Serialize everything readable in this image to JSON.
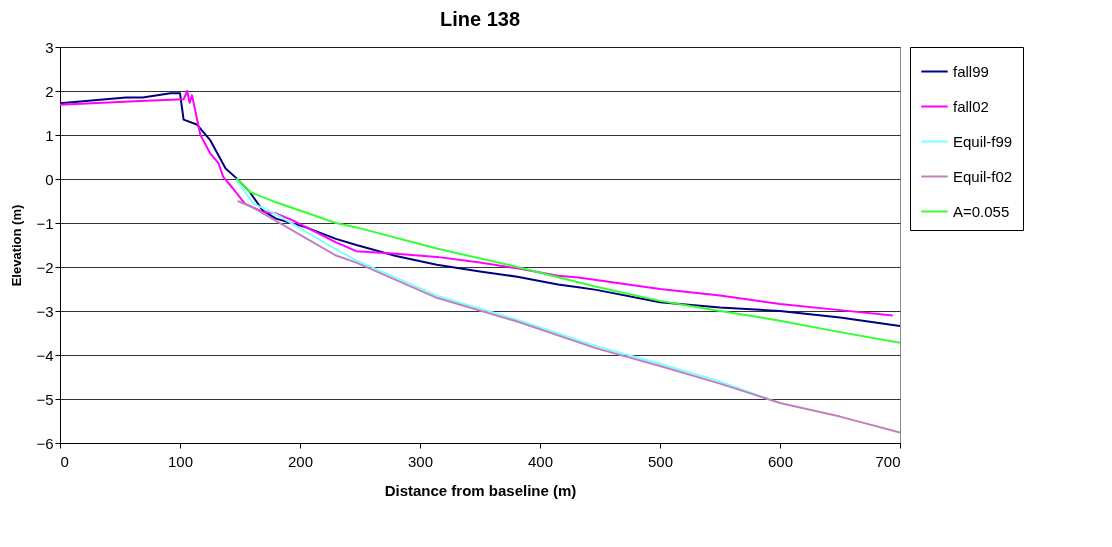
{
  "chart_data": {
    "type": "line",
    "title": "Line 138",
    "xlabel": "Distance from baseline (m)",
    "ylabel": "Elevation (m)",
    "xlim": [
      0,
      700
    ],
    "xticks": [
      0,
      100,
      200,
      300,
      400,
      500,
      600,
      700
    ],
    "ylim": [
      -6,
      3
    ],
    "yticks": [
      -6,
      -5,
      -4,
      -3,
      -2,
      -1,
      0,
      1,
      2,
      3
    ],
    "grid": "y",
    "legend": "right",
    "marker": "none",
    "line_style": "solid",
    "series": [
      {
        "name": "fall99",
        "color": "#000080",
        "x": [
          0,
          55,
          69,
          92,
          100,
          103,
          114,
          125,
          138,
          147,
          158,
          169,
          180,
          205,
          230,
          247,
          280,
          314,
          350,
          381,
          415,
          432,
          447,
          500,
          550,
          600,
          650,
          700
        ],
        "values": [
          1.72,
          1.85,
          1.85,
          1.95,
          1.95,
          1.35,
          1.24,
          0.89,
          0.24,
          0.02,
          -0.29,
          -0.72,
          -0.9,
          -1.1,
          -1.36,
          -1.5,
          -1.75,
          -1.95,
          -2.1,
          -2.22,
          -2.4,
          -2.46,
          -2.52,
          -2.8,
          -2.92,
          -3.0,
          -3.15,
          -3.34
        ]
      },
      {
        "name": "fall02",
        "color": "#ff00ff",
        "x": [
          0,
          67,
          103,
          106,
          108,
          110,
          117,
          125,
          132,
          136,
          144,
          154,
          169,
          180,
          194,
          230,
          247,
          280,
          314,
          350,
          381,
          415,
          432,
          500,
          550,
          600,
          650,
          694
        ],
        "values": [
          1.69,
          1.77,
          1.81,
          2.0,
          1.73,
          1.9,
          1.0,
          0.59,
          0.36,
          0.05,
          -0.21,
          -0.56,
          -0.75,
          -0.78,
          -0.94,
          -1.44,
          -1.64,
          -1.7,
          -1.77,
          -1.9,
          -2.03,
          -2.2,
          -2.24,
          -2.5,
          -2.65,
          -2.84,
          -2.98,
          -3.1
        ]
      },
      {
        "name": "Equil-f99",
        "color": "#80ffff",
        "x": [
          147,
          161,
          180,
          230,
          247,
          314,
          381,
          447,
          500,
          550,
          590
        ],
        "values": [
          -0.02,
          -0.56,
          -0.8,
          -1.6,
          -1.85,
          -2.65,
          -3.2,
          -3.8,
          -4.2,
          -4.6,
          -5.0
        ]
      },
      {
        "name": "Equil-f02",
        "color": "#c080c0",
        "x": [
          148,
          161,
          180,
          230,
          247,
          314,
          381,
          447,
          500,
          550,
          600,
          650,
          700
        ],
        "values": [
          -0.5,
          -0.65,
          -0.95,
          -1.74,
          -1.9,
          -2.7,
          -3.24,
          -3.85,
          -4.25,
          -4.65,
          -5.09,
          -5.4,
          -5.76
        ]
      },
      {
        "name": "A=0.055",
        "color": "#33ff33",
        "x": [
          147,
          158,
          180,
          230,
          247,
          314,
          381,
          447,
          500,
          550,
          600,
          650,
          700
        ],
        "values": [
          0.02,
          -0.29,
          -0.53,
          -1.0,
          -1.1,
          -1.58,
          -2.0,
          -2.45,
          -2.77,
          -3.0,
          -3.22,
          -3.48,
          -3.72
        ]
      }
    ]
  }
}
